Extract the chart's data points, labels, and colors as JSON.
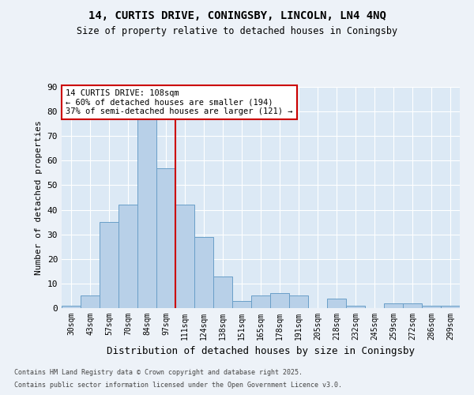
{
  "title1": "14, CURTIS DRIVE, CONINGSBY, LINCOLN, LN4 4NQ",
  "title2": "Size of property relative to detached houses in Coningsby",
  "xlabel": "Distribution of detached houses by size in Coningsby",
  "ylabel": "Number of detached properties",
  "categories": [
    "30sqm",
    "43sqm",
    "57sqm",
    "70sqm",
    "84sqm",
    "97sqm",
    "111sqm",
    "124sqm",
    "138sqm",
    "151sqm",
    "165sqm",
    "178sqm",
    "191sqm",
    "205sqm",
    "218sqm",
    "232sqm",
    "245sqm",
    "259sqm",
    "272sqm",
    "286sqm",
    "299sqm"
  ],
  "values": [
    1,
    5,
    35,
    42,
    79,
    57,
    42,
    29,
    13,
    3,
    5,
    6,
    5,
    0,
    4,
    1,
    0,
    2,
    2,
    1,
    1
  ],
  "bar_color": "#b8d0e8",
  "bar_edge_color": "#6a9fc8",
  "vline_x_idx": 5.5,
  "vline_color": "#cc0000",
  "annotation_text": "14 CURTIS DRIVE: 108sqm\n← 60% of detached houses are smaller (194)\n37% of semi-detached houses are larger (121) →",
  "annotation_box_color": "#ffffff",
  "annotation_box_edge": "#cc0000",
  "ylim": [
    0,
    90
  ],
  "yticks": [
    0,
    10,
    20,
    30,
    40,
    50,
    60,
    70,
    80,
    90
  ],
  "footer1": "Contains HM Land Registry data © Crown copyright and database right 2025.",
  "footer2": "Contains public sector information licensed under the Open Government Licence v3.0.",
  "fig_bg_color": "#edf2f8",
  "plot_bg_color": "#dce9f5"
}
